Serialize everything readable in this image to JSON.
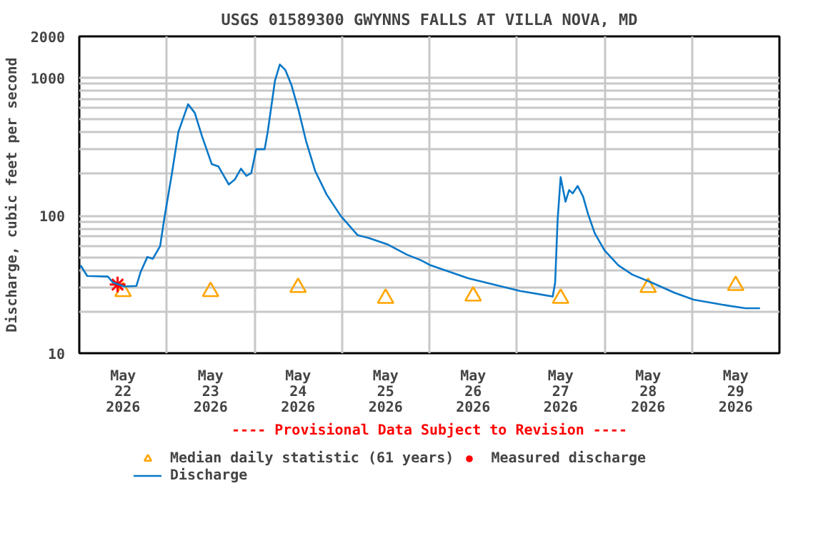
{
  "chart_data": {
    "type": "line",
    "title": "USGS 01589300 GWYNNS FALLS AT VILLA NOVA, MD",
    "ylabel": "Discharge, cubic feet per second",
    "annotations": [
      "---- Provisional Data Subject to Revision ----"
    ],
    "log": "y",
    "grid": true,
    "legend": "bottom",
    "xlim": [
      "2026-05-22T00:00",
      "2026-05-30T00:00"
    ],
    "xticks": [
      {
        "value": "2026-05-22T12:00",
        "label": "May\n22\n2026"
      },
      {
        "value": "2026-05-23T12:00",
        "label": "May\n23\n2026"
      },
      {
        "value": "2026-05-24T12:00",
        "label": "May\n24\n2026"
      },
      {
        "value": "2026-05-25T12:00",
        "label": "May\n25\n2026"
      },
      {
        "value": "2026-05-26T12:00",
        "label": "May\n26\n2026"
      },
      {
        "value": "2026-05-27T12:00",
        "label": "May\n27\n2026"
      },
      {
        "value": "2026-05-28T12:00",
        "label": "May\n28\n2026"
      },
      {
        "value": "2026-05-29T12:00",
        "label": "May\n29\n2026"
      },
      {
        "value": "2026-05-23T00:00",
        "label": null
      },
      {
        "value": "2026-05-24T00:00",
        "label": null
      },
      {
        "value": "2026-05-25T00:00",
        "label": null
      },
      {
        "value": "2026-05-26T00:00",
        "label": null
      },
      {
        "value": "2026-05-27T00:00",
        "label": null
      },
      {
        "value": "2026-05-28T00:00",
        "label": null
      },
      {
        "value": "2026-05-29T00:00",
        "label": null
      }
    ],
    "ylim": [
      10,
      2000
    ],
    "yticks": [
      10,
      {
        "value": 20,
        "label": null
      },
      {
        "value": 30,
        "label": null
      },
      {
        "value": 40,
        "label": null
      },
      {
        "value": 50,
        "label": null
      },
      {
        "value": 60,
        "label": null
      },
      {
        "value": 70,
        "label": null
      },
      {
        "value": 80,
        "label": null
      },
      {
        "value": 90,
        "label": null
      },
      100,
      {
        "value": 200,
        "label": null
      },
      {
        "value": 300,
        "label": null
      },
      {
        "value": 400,
        "label": null
      },
      {
        "value": 500,
        "label": null
      },
      {
        "value": 600,
        "label": null
      },
      {
        "value": 700,
        "label": null
      },
      {
        "value": 800,
        "label": null
      },
      {
        "value": 900,
        "label": null
      },
      1000,
      2000
    ],
    "series": [
      {
        "name": "Median daily statistic (61 years)",
        "type": "scatter",
        "marker": "triangle",
        "color": "#ffa500",
        "x": [
          "2026-05-22T12:00",
          "2026-05-23T12:00",
          "2026-05-24T12:00",
          "2026-05-25T12:00",
          "2026-05-26T12:00",
          "2026-05-27T12:00",
          "2026-05-28T12:00",
          "2026-05-29T12:00"
        ],
        "values": [
          28,
          28,
          30,
          25,
          26,
          25,
          30,
          31
        ]
      },
      {
        "name": "Measured discharge",
        "type": "scatter",
        "marker": "cross",
        "color": "#ff0000",
        "x": [
          "2026-05-22T10:30"
        ],
        "values": [
          31.5
        ]
      },
      {
        "name": "Discharge",
        "marker": "none",
        "line_style": "solid",
        "color": "#0a78c8",
        "x": [
          "2026-05-22T00:20",
          "2026-05-22T02:10",
          "2026-05-22T07:50",
          "2026-05-22T09:10",
          "2026-05-22T12:20",
          "2026-05-22T15:40",
          "2026-05-22T16:50",
          "2026-05-22T18:40",
          "2026-05-22T20:10",
          "2026-05-22T22:10",
          "2026-05-22T23:20",
          "2026-05-23T01:20",
          "2026-05-23T03:10",
          "2026-05-23T05:50",
          "2026-05-23T07:40",
          "2026-05-23T09:40",
          "2026-05-23T12:20",
          "2026-05-23T14:10",
          "2026-05-23T17:00",
          "2026-05-23T18:40",
          "2026-05-23T20:20",
          "2026-05-23T21:50",
          "2026-05-23T23:10",
          "2026-05-24T00:30",
          "2026-05-24T02:50",
          "2026-05-24T03:40",
          "2026-05-24T05:40",
          "2026-05-24T07:00",
          "2026-05-24T08:30",
          "2026-05-24T10:10",
          "2026-05-24T12:10",
          "2026-05-24T14:10",
          "2026-05-24T16:40",
          "2026-05-24T19:50",
          "2026-05-24T23:40",
          "2026-05-25T04:20",
          "2026-05-25T07:30",
          "2026-05-25T12:40",
          "2026-05-25T17:50",
          "2026-05-25T21:40",
          "2026-05-26T00:20",
          "2026-05-26T10:40",
          "2026-05-27T00:50",
          "2026-05-27T09:50",
          "2026-05-27T10:30",
          "2026-05-27T11:10",
          "2026-05-27T12:00",
          "2026-05-27T13:20",
          "2026-05-27T14:20",
          "2026-05-27T15:20",
          "2026-05-27T16:40",
          "2026-05-27T18:10",
          "2026-05-27T19:30",
          "2026-05-27T21:20",
          "2026-05-28T00:00",
          "2026-05-28T03:50",
          "2026-05-28T07:40",
          "2026-05-28T12:50",
          "2026-05-28T19:20",
          "2026-05-29T00:30",
          "2026-05-29T08:20",
          "2026-05-29T14:40",
          "2026-05-29T18:40"
        ],
        "values": [
          43.5,
          36.4,
          36,
          32.7,
          30.5,
          30.8,
          39,
          50,
          48.5,
          60,
          96,
          197,
          404,
          643,
          557,
          376,
          236,
          227,
          168,
          183,
          219,
          194,
          204,
          303,
          303,
          404,
          955,
          1250,
          1140,
          889,
          577,
          349,
          211,
          142,
          99.6,
          72,
          68.5,
          61.5,
          52,
          47.4,
          43.5,
          35,
          28.3,
          25.8,
          32.7,
          92.5,
          190,
          126,
          153,
          145,
          164,
          137,
          103,
          74.6,
          56,
          43.5,
          37.2,
          32.7,
          27.4,
          24.5,
          22.5,
          21.2,
          21.2
        ]
      }
    ]
  }
}
